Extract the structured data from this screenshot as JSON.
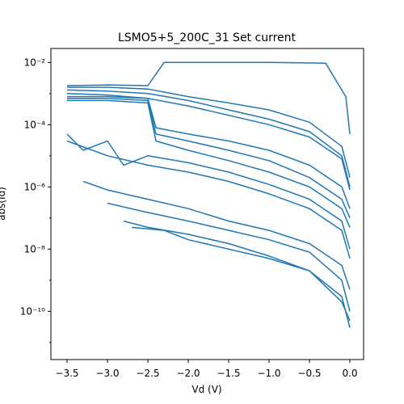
{
  "chart_data": {
    "type": "line",
    "title": "LSMO5+5_200C_31 Set current",
    "xlabel": "Vd (V)",
    "ylabel": "abs(Id)",
    "xlim": [
      -3.7,
      0.17
    ],
    "ylog": true,
    "ylim_exp": [
      -11.55,
      -1.55
    ],
    "x_ticks": [
      -3.5,
      -3.0,
      -2.5,
      -2.0,
      -1.5,
      -1.0,
      -0.5,
      0.0
    ],
    "x_tick_labels": [
      "−3.5",
      "−3.0",
      "−2.5",
      "−2.0",
      "−1.5",
      "−1.0",
      "−0.5",
      "0.0"
    ],
    "y_tick_exps": [
      -10,
      -8,
      -6,
      -4,
      -2
    ],
    "y_tick_labels": [
      "10⁻¹⁰",
      "10⁻⁸",
      "10⁻⁶",
      "10⁻⁴",
      "10⁻²"
    ],
    "color": "#1f77b4",
    "grid": false,
    "series": [
      {
        "x": [
          -3.5,
          -3.0,
          -2.5,
          -2.3,
          -2.0,
          -1.0,
          -0.3,
          -0.05,
          0.0
        ],
        "y": [
          0.0018,
          0.0019,
          0.0018,
          0.01,
          0.01,
          0.01,
          0.0095,
          0.0008,
          5e-05
        ]
      },
      {
        "x": [
          -3.5,
          -3.0,
          -2.5,
          -2.0,
          -1.5,
          -1.0,
          -0.5,
          -0.1,
          0.0
        ],
        "y": [
          0.0016,
          0.0016,
          0.0014,
          0.0008,
          0.0005,
          0.0003,
          0.00012,
          2e-05,
          2e-06
        ]
      },
      {
        "x": [
          -3.5,
          -3.0,
          -2.5,
          -2.0,
          -1.5,
          -1.0,
          -0.5,
          -0.1,
          0.0
        ],
        "y": [
          0.0013,
          0.0012,
          0.001,
          0.0006,
          0.0003,
          0.00015,
          6e-05,
          1e-05,
          1e-06
        ]
      },
      {
        "x": [
          -3.5,
          -3.0,
          -2.5,
          -2.0,
          -1.5,
          -1.0,
          -0.5,
          -0.1,
          0.0
        ],
        "y": [
          0.001,
          0.0009,
          0.0007,
          0.0004,
          0.0002,
          0.0001,
          4e-05,
          8e-06,
          8e-07
        ]
      },
      {
        "x": [
          -3.5,
          -3.0,
          -2.5,
          -2.4,
          -2.0,
          -1.5,
          -1.0,
          -0.5,
          -0.1,
          0.0
        ],
        "y": [
          0.0008,
          0.0008,
          0.0007,
          8e-05,
          5e-05,
          3e-05,
          1.5e-05,
          5e-06,
          1e-06,
          2e-07
        ]
      },
      {
        "x": [
          -3.5,
          -3.0,
          -2.5,
          -2.4,
          -2.0,
          -1.5,
          -1.0,
          -0.5,
          -0.1,
          0.0
        ],
        "y": [
          0.0007,
          0.0007,
          0.0006,
          5e-05,
          3e-05,
          1.5e-05,
          7e-06,
          2e-06,
          4e-07,
          1e-07
        ]
      },
      {
        "x": [
          -3.5,
          -3.0,
          -2.5,
          -2.4,
          -2.0,
          -1.5,
          -1.0,
          -0.5,
          -0.1,
          0.0
        ],
        "y": [
          0.0006,
          0.0006,
          0.0005,
          3e-05,
          1.5e-05,
          7e-06,
          3e-06,
          1e-06,
          2e-07,
          5e-08
        ]
      },
      {
        "x": [
          -3.5,
          -3.3,
          -3.0,
          -2.8,
          -2.5,
          -2.0,
          -1.5,
          -1.0,
          -0.5,
          -0.1,
          0.0
        ],
        "y": [
          5e-05,
          1.5e-05,
          3e-05,
          5e-06,
          1e-05,
          6e-06,
          3e-06,
          1.2e-06,
          4e-07,
          8e-08,
          1e-08
        ]
      },
      {
        "x": [
          -3.5,
          -3.0,
          -2.5,
          -2.0,
          -1.5,
          -1.0,
          -0.5,
          -0.1,
          0.0
        ],
        "y": [
          3e-05,
          1e-05,
          5e-06,
          3e-06,
          1.5e-06,
          6e-07,
          2e-07,
          4e-08,
          5e-09
        ]
      },
      {
        "x": [
          -3.3,
          -3.0,
          -2.5,
          -2.0,
          -1.5,
          -1.0,
          -0.5,
          -0.1,
          0.0
        ],
        "y": [
          1.5e-06,
          8e-07,
          4e-07,
          2e-07,
          8e-08,
          4e-08,
          1.5e-08,
          3e-09,
          5e-10
        ]
      },
      {
        "x": [
          -3.0,
          -2.5,
          -2.0,
          -1.5,
          -1.0,
          -0.5,
          -0.1,
          0.0
        ],
        "y": [
          3e-07,
          1.5e-07,
          8e-08,
          4e-08,
          2e-08,
          8e-09,
          1e-09,
          1e-10
        ]
      },
      {
        "x": [
          -2.7,
          -2.3,
          -2.0,
          -1.5,
          -1.0,
          -0.5,
          -0.1,
          0.0
        ],
        "y": [
          5e-08,
          4e-08,
          2e-08,
          1e-08,
          5e-09,
          2e-09,
          3e-10,
          3e-11
        ]
      },
      {
        "x": [
          -2.8,
          -2.5,
          -2.0,
          -1.5,
          -1.0,
          -0.5,
          -0.1,
          0.0
        ],
        "y": [
          8e-08,
          5e-08,
          3e-08,
          1.5e-08,
          6e-09,
          2e-09,
          2e-10,
          5e-11
        ]
      }
    ]
  }
}
